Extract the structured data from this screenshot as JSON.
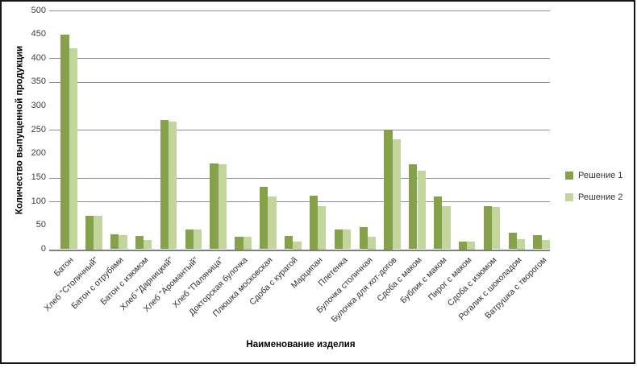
{
  "chart_data": {
    "type": "bar",
    "title": "",
    "xlabel": "Наименование изделия",
    "ylabel": "Количество выпущенной продукции",
    "ylim": [
      0,
      500
    ],
    "ytick_step": 50,
    "yticks": [
      0,
      50,
      100,
      150,
      200,
      250,
      300,
      350,
      400,
      450,
      500
    ],
    "visible_gridline_values": [
      500,
      400,
      350,
      250,
      150,
      100
    ],
    "grid": "horizontal",
    "legend_position": "right",
    "categories": [
      "Батон",
      "Хлеб \"Столичный\"",
      "Батон с отрубями",
      "Батон с изюмом",
      "Хлеб \"Дарницкий\"",
      "Хлеб \"Аромантый\"",
      "Хлеб \"Паляница\"",
      "Докторская булочка",
      "Плюшка московская",
      "Сдоба с курагой",
      "Марципан",
      "Плетенка",
      "Булочка столичная",
      "Булочка для хот-догов",
      "Сдоба с маком",
      "Бублик с маком",
      "Пирог с маком",
      "Сдоба с изюмом",
      "Рогалик с шоколадом",
      "Ватрушка с творогом"
    ],
    "series": [
      {
        "name": "Решение 1",
        "color": "#85a24b",
        "values": [
          450,
          70,
          31,
          28,
          270,
          42,
          180,
          27,
          130,
          28,
          113,
          42,
          46,
          250,
          178,
          110,
          16,
          91,
          35,
          30
        ]
      },
      {
        "name": "Решение 2",
        "color": "#c2d59c",
        "values": [
          420,
          70,
          29,
          19,
          268,
          42,
          178,
          27,
          110,
          16,
          91,
          41,
          27,
          230,
          165,
          90,
          16,
          88,
          21,
          20
        ]
      }
    ],
    "colors": {
      "gridline": "#8e8e8e",
      "axis_line": "#7f7f7f",
      "frame_border": "#161616",
      "tick_text": "#3f3f3f",
      "title_text": "#000000"
    }
  }
}
